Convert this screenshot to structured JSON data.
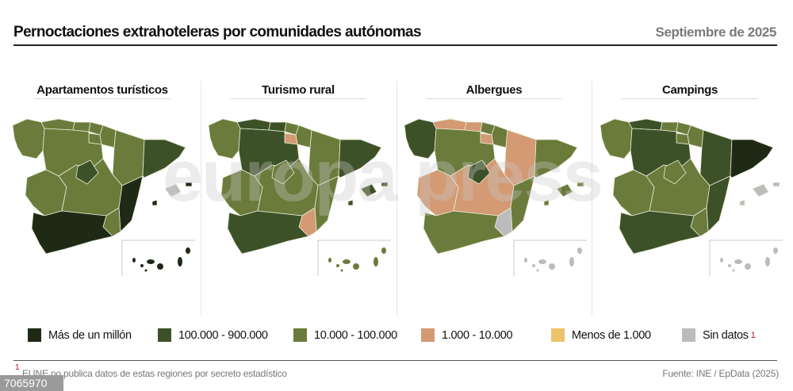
{
  "header": {
    "title": "Pernoctaciones extrahoteleras por comunidades autónomas",
    "date": "Septiembre de 2025"
  },
  "watermark": "europa press",
  "colors": {
    "c1": "#1f2a16",
    "c2": "#3d5128",
    "c3": "#6b7b3b",
    "c4": "#d39a74",
    "c5": "#ecc36a",
    "c6": "#bcbcbc"
  },
  "maps": [
    {
      "title": "Apartamentos turísticos",
      "regions": {
        "galicia": "c3",
        "asturias": "c3",
        "cantabria": "c3",
        "paisvasco": "c3",
        "navarra": "c3",
        "rioja": "c3",
        "aragon": "c3",
        "cataluna": "c2",
        "cyl": "c3",
        "extremadura": "c3",
        "clm": "c3",
        "madrid": "c2",
        "valencia": "c1",
        "murcia": "c3",
        "andalucia": "c1",
        "mallorca": "c6",
        "menorca": "c1",
        "ibiza": "c1",
        "canarias": "c1"
      }
    },
    {
      "title": "Turismo rural",
      "regions": {
        "galicia": "c3",
        "asturias": "c2",
        "cantabria": "c2",
        "paisvasco": "c3",
        "navarra": "c3",
        "rioja": "c4",
        "aragon": "c3",
        "cataluna": "c2",
        "cyl": "c2",
        "extremadura": "c3",
        "clm": "c3",
        "madrid": "c3",
        "valencia": "c3",
        "murcia": "c4",
        "andalucia": "c2",
        "mallorca": "c2",
        "menorca": "c2",
        "ibiza": "c2",
        "canarias": "c3"
      }
    },
    {
      "title": "Albergues",
      "regions": {
        "galicia": "c2",
        "asturias": "c4",
        "cantabria": "c4",
        "paisvasco": "c3",
        "navarra": "c3",
        "rioja": "c4",
        "aragon": "c4",
        "cataluna": "c3",
        "cyl": "c3",
        "extremadura": "c4",
        "clm": "c4",
        "madrid": "c2",
        "valencia": "c3",
        "murcia": "c6",
        "andalucia": "c3",
        "mallorca": "c3",
        "menorca": "c3",
        "ibiza": "c3",
        "canarias": "c6"
      }
    },
    {
      "title": "Campings",
      "regions": {
        "galicia": "c3",
        "asturias": "c2",
        "cantabria": "c3",
        "paisvasco": "c3",
        "navarra": "c3",
        "rioja": "c3",
        "aragon": "c2",
        "cataluna": "c1",
        "cyl": "c2",
        "extremadura": "c3",
        "clm": "c3",
        "madrid": "c3",
        "valencia": "c2",
        "murcia": "c3",
        "andalucia": "c2",
        "mallorca": "c6",
        "menorca": "c6",
        "ibiza": "c6",
        "canarias": "c6"
      }
    }
  ],
  "legend": [
    {
      "label": "Más de un millón",
      "color": "c1"
    },
    {
      "label": "100.000 - 900.000",
      "color": "c2"
    },
    {
      "label": "10.000 - 100.000",
      "color": "c3"
    },
    {
      "label": "1.000 - 10.000",
      "color": "c4"
    },
    {
      "label": "Menos de 1.000",
      "color": "c5"
    },
    {
      "label": "Sin datos",
      "color": "c6",
      "footnote": "1"
    }
  ],
  "footer": {
    "note_marker": "1",
    "note": "El INE no publica datos de estas regiones por secreto estadístico",
    "source": "Fuente: INE / EpData (2025)",
    "id": "7065970"
  }
}
